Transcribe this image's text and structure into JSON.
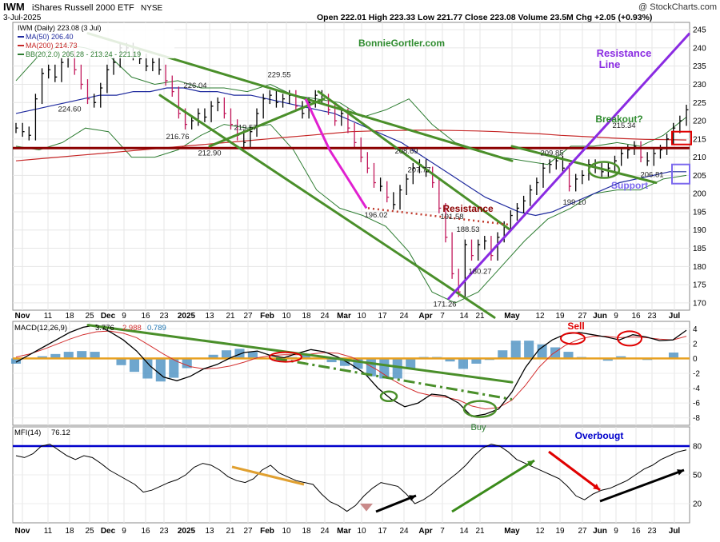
{
  "header": {
    "ticker": "IWM",
    "name": "iShares Russell 2000 ETF",
    "exchange": "NYSE",
    "date": "3-Jul-2025",
    "source": "@ StockCharts.com",
    "ohlc_text": "Open 222.01  High 223.33  Low 221.77  Close 223.08  Volume 23.5M  Chg +2.05 (+0.93%)"
  },
  "legend": {
    "price": "IWM (Daily) 223.08 (3 Jul)",
    "ma50": "MA(50) 206.40",
    "ma200": "MA(200) 214.73",
    "bb": "BB(20,2.0) 205.28 - 213.24 - 221.19"
  },
  "annotations": {
    "watermark": "BonnieGortler.com",
    "resistance_line_1": "Resistance",
    "resistance_line_2": "Line",
    "resistance_mid": "Resistance",
    "breakout": "Breakout?",
    "support": "Support",
    "sell": "Sell",
    "buy": "Buy",
    "overbought": "Overbougt"
  },
  "macd_legend": {
    "label": "MACD(12,26,9)",
    "macd": "3.776",
    "signal": "2.988",
    "hist": "0.789"
  },
  "mfi_legend": {
    "label": "MFI(14)",
    "value": "76.12"
  },
  "colors": {
    "price_bar": "#000000",
    "down_bar": "#c2185b",
    "ma50": "#1f2a9e",
    "ma200": "#c62828",
    "bollinger": "#2e7d32",
    "trendline": "#4a8f2a",
    "resistance_line": "#8a2be2",
    "horizontal_resistance": "#8b0000",
    "magenta": "#e020d0",
    "macd_line": "#000000",
    "signal_line": "#d32f2f",
    "histogram": "#4a90c2",
    "zero_line": "#e8a020",
    "mfi_line": "#000000",
    "overbought_line": "#0000cc"
  },
  "chart_data": [
    {
      "type": "candlestick",
      "title": "IWM iShares Russell 2000 ETF NYSE",
      "ylim": [
        168,
        247
      ],
      "y_ticks": [
        170,
        175,
        180,
        185,
        190,
        195,
        200,
        205,
        210,
        215,
        220,
        225,
        230,
        235,
        240,
        245
      ],
      "x_tick_labels": [
        "Nov",
        "11",
        "18",
        "25",
        "Dec",
        "9",
        "16",
        "23",
        "2025",
        "13",
        "21",
        "27",
        "Feb",
        "10",
        "18",
        "24",
        "Mar",
        "10",
        "17",
        "24",
        "Apr",
        "7",
        "14",
        "21",
        "May",
        "12",
        "19",
        "27",
        "Jun",
        "9",
        "16",
        "23",
        "Jul"
      ],
      "point_labels": [
        "224.60",
        "226.04",
        "216.76",
        "212.90",
        "229.55",
        "219.57",
        "208.69",
        "207.77",
        "196.02",
        "191.58",
        "188.53",
        "180.27",
        "171.26",
        "209.85",
        "215.34",
        "199.10",
        "206.81"
      ],
      "price_series": [
        218,
        217,
        216,
        226,
        233,
        234,
        232,
        236,
        238,
        234,
        230,
        226,
        225,
        229,
        234,
        236,
        240,
        240,
        238,
        237,
        235,
        236,
        234,
        231,
        228,
        222,
        219,
        220,
        222,
        221,
        224,
        225,
        222,
        219,
        216,
        214,
        217,
        222,
        226,
        227,
        225,
        226,
        227,
        224,
        222,
        225,
        227,
        226,
        223,
        220,
        222,
        218,
        214,
        210,
        207,
        203,
        202,
        199,
        197,
        201,
        204,
        207,
        208,
        206,
        203,
        196,
        188,
        178,
        173,
        186,
        183,
        186,
        187,
        183,
        188,
        191,
        194,
        196,
        198,
        201,
        203,
        207,
        208,
        209,
        207,
        202,
        204,
        205,
        208,
        207,
        206,
        207,
        209,
        211,
        212,
        213,
        210,
        209,
        211,
        212,
        215,
        218,
        220,
        223
      ],
      "ma50": [
        222,
        223,
        224,
        225,
        226,
        227,
        227,
        228,
        228,
        229,
        229,
        228,
        228,
        227,
        227,
        226,
        225,
        224,
        223,
        222,
        220,
        218,
        216,
        214,
        211,
        208,
        205,
        202,
        199,
        197,
        195,
        194,
        195,
        197,
        199,
        201,
        203,
        204,
        205,
        206,
        206
      ],
      "ma200": [
        209,
        209.5,
        210,
        210.5,
        211,
        211.5,
        212,
        212.5,
        213,
        213.5,
        214,
        214.5,
        215,
        215.5,
        216,
        216.5,
        217,
        217.2,
        217.3,
        217.4,
        217.4,
        217.3,
        217.2,
        217.0,
        216.7,
        216.4,
        216.0,
        215.7,
        215.4,
        215.1,
        214.9,
        214.8,
        214.73
      ],
      "bb_upper": [
        231,
        238,
        241,
        240,
        238,
        232,
        230,
        231,
        229,
        229,
        228,
        230,
        227,
        226,
        225,
        221,
        223,
        226,
        219,
        214,
        212,
        210,
        209,
        208,
        213,
        213,
        214,
        213,
        216,
        221
      ],
      "bb_lower": [
        213,
        212,
        214,
        218,
        217,
        210,
        210,
        212,
        216,
        219,
        218,
        219,
        212,
        201,
        196,
        194,
        191,
        184,
        173,
        170,
        173,
        180,
        187,
        193,
        196,
        200,
        201,
        201,
        204,
        205
      ],
      "resistance_level": 212.5
    },
    {
      "type": "line",
      "title": "MACD(12,26,9)",
      "ylim": [
        -9,
        5
      ],
      "y_ticks": [
        -8,
        -6,
        -4,
        -2,
        0,
        2,
        4
      ],
      "macd": [
        -0.5,
        0.5,
        1.5,
        2.5,
        3.5,
        4.2,
        4.5,
        3.6,
        2.5,
        1.0,
        -1.0,
        -2.5,
        -3.0,
        -2.4,
        -1.4,
        -0.8,
        0.1,
        0.8,
        1.0,
        0.4,
        0.1,
        0.7,
        1.2,
        0.9,
        0.2,
        -0.8,
        -2.0,
        -4.0,
        -5.5,
        -6.5,
        -6.0,
        -4.8,
        -5.0,
        -6.0,
        -7.8,
        -7.5,
        -6.8,
        -4.5,
        -1.2,
        1.2,
        2.5,
        3.3,
        3.5,
        3.2,
        2.9,
        2.5,
        3.2,
        2.9,
        2.4,
        2.5,
        3.8
      ],
      "signal": [
        0.2,
        0.6,
        1.2,
        1.9,
        2.6,
        3.2,
        3.6,
        3.7,
        3.4,
        2.8,
        1.7,
        0.6,
        -0.4,
        -1.1,
        -1.4,
        -1.3,
        -1.0,
        -0.5,
        0.1,
        0.4,
        0.5,
        0.5,
        0.6,
        0.8,
        0.7,
        0.2,
        -0.6,
        -1.6,
        -2.8,
        -3.8,
        -4.6,
        -5.0,
        -5.2,
        -5.6,
        -6.4,
        -6.8,
        -6.6,
        -5.6,
        -3.6,
        -1.2,
        0.6,
        1.8,
        2.6,
        3.0,
        3.0,
        2.8,
        2.9,
        2.8,
        2.6,
        2.5,
        3.0
      ],
      "histogram": [
        -0.7,
        -0.1,
        0.3,
        0.6,
        0.9,
        1.0,
        0.9,
        -0.1,
        -0.9,
        -1.8,
        -2.7,
        -3.1,
        -2.6,
        -1.3,
        0.0,
        0.5,
        1.1,
        1.3,
        0.9,
        0.0,
        -0.4,
        0.2,
        0.6,
        0.1,
        -0.5,
        -1.0,
        -1.4,
        -2.4,
        -2.7,
        -2.7,
        -1.4,
        0.2,
        0.2,
        -0.4,
        -1.4,
        -0.7,
        -0.2,
        1.1,
        2.4,
        2.4,
        1.9,
        1.5,
        0.9,
        0.2,
        -0.1,
        -0.3,
        0.3,
        0.1,
        -0.2,
        0.0,
        0.8
      ]
    },
    {
      "type": "line",
      "title": "MFI(14)",
      "ylim": [
        0,
        100
      ],
      "y_ticks": [
        20,
        50,
        80
      ],
      "overbought_level": 80,
      "mfi": [
        70,
        68,
        72,
        80,
        82,
        76,
        70,
        66,
        70,
        68,
        62,
        55,
        50,
        45,
        40,
        32,
        34,
        38,
        42,
        45,
        50,
        58,
        62,
        60,
        55,
        48,
        44,
        42,
        46,
        55,
        60,
        52,
        48,
        44,
        42,
        40,
        30,
        22,
        18,
        12,
        18,
        28,
        36,
        42,
        40,
        38,
        30,
        20,
        24,
        30,
        38,
        45,
        52,
        60,
        70,
        78,
        82,
        80,
        74,
        66,
        62,
        58,
        54,
        50,
        46,
        38,
        28,
        24,
        30,
        34,
        36,
        40,
        44,
        50,
        56,
        60,
        66,
        70,
        74,
        76
      ]
    }
  ]
}
